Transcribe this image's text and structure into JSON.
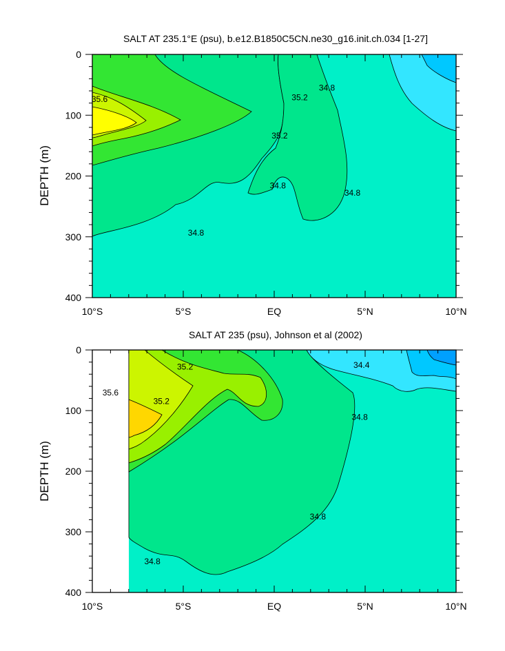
{
  "chart_data": [
    {
      "type": "contour",
      "title": "SALT AT 235.1°E (psu), b.e12.B1850C5CN.ne30_g16.init.ch.034 [1-27]",
      "ylabel": "DEPTH (m)",
      "x_ticks": [
        "10°S",
        "5°S",
        "EQ",
        "5°N",
        "10°N"
      ],
      "y_ticks": [
        "0",
        "100",
        "200",
        "300",
        "400"
      ],
      "xlim": [
        -10,
        10
      ],
      "ylim": [
        400,
        0
      ],
      "contour_interval": 0.2,
      "levels": [
        34.0,
        34.2,
        34.4,
        34.6,
        34.8,
        35.0,
        35.2,
        35.4,
        35.6,
        35.8
      ],
      "contour_labels": [
        {
          "text": "35.6",
          "lat": -9.6,
          "depth": 76
        },
        {
          "text": "35.2",
          "lat": 1.4,
          "depth": 73
        },
        {
          "text": "35.2",
          "lat": 0.3,
          "depth": 136
        },
        {
          "text": "34.8",
          "lat": 2.9,
          "depth": 57
        },
        {
          "text": "34.8",
          "lat": 0.2,
          "depth": 218
        },
        {
          "text": "34.8",
          "lat": 4.3,
          "depth": 230
        },
        {
          "text": "34.8",
          "lat": -4.3,
          "depth": 296
        }
      ],
      "fill_colors": {
        "35.8": "#ffff00",
        "35.6": "#ccf500",
        "35.4": "#99f000",
        "35.2": "#33e633",
        "35.0": "#00e68c",
        "34.8": "#00f0c8",
        "34.6": "#33e6ff",
        "34.4": "#00c8ff"
      }
    },
    {
      "type": "contour",
      "title": "SALT AT 235 (psu), Johnson et al (2002)",
      "ylabel": "DEPTH (m)",
      "x_ticks": [
        "10°S",
        "5°S",
        "EQ",
        "5°N",
        "10°N"
      ],
      "y_ticks": [
        "0",
        "100",
        "200",
        "300",
        "400"
      ],
      "xlim": [
        -10,
        10
      ],
      "ylim": [
        400,
        0
      ],
      "data_start_lat": -8,
      "contour_interval": 0.2,
      "levels": [
        34.0,
        34.2,
        34.4,
        34.6,
        34.8,
        35.0,
        35.2,
        35.4,
        35.6,
        35.8
      ],
      "contour_labels": [
        {
          "text": "35.2",
          "lat": -4.9,
          "depth": 30
        },
        {
          "text": "35.6",
          "lat": -9.0,
          "depth": 73
        },
        {
          "text": "35.2",
          "lat": -6.2,
          "depth": 87
        },
        {
          "text": "34.4",
          "lat": 4.8,
          "depth": 27
        },
        {
          "text": "34.8",
          "lat": 4.7,
          "depth": 113
        },
        {
          "text": "34.8",
          "lat": 2.4,
          "depth": 277
        },
        {
          "text": "34.8",
          "lat": -6.7,
          "depth": 351
        }
      ],
      "fill_colors": {
        "35.8": "#ffd700",
        "35.6": "#ccf500",
        "35.4": "#99f000",
        "35.2": "#33e633",
        "35.0": "#00e68c",
        "34.8": "#00f0c8",
        "34.6": "#33e6ff",
        "34.4": "#00c8ff",
        "34.2": "#00a0ff"
      }
    }
  ]
}
